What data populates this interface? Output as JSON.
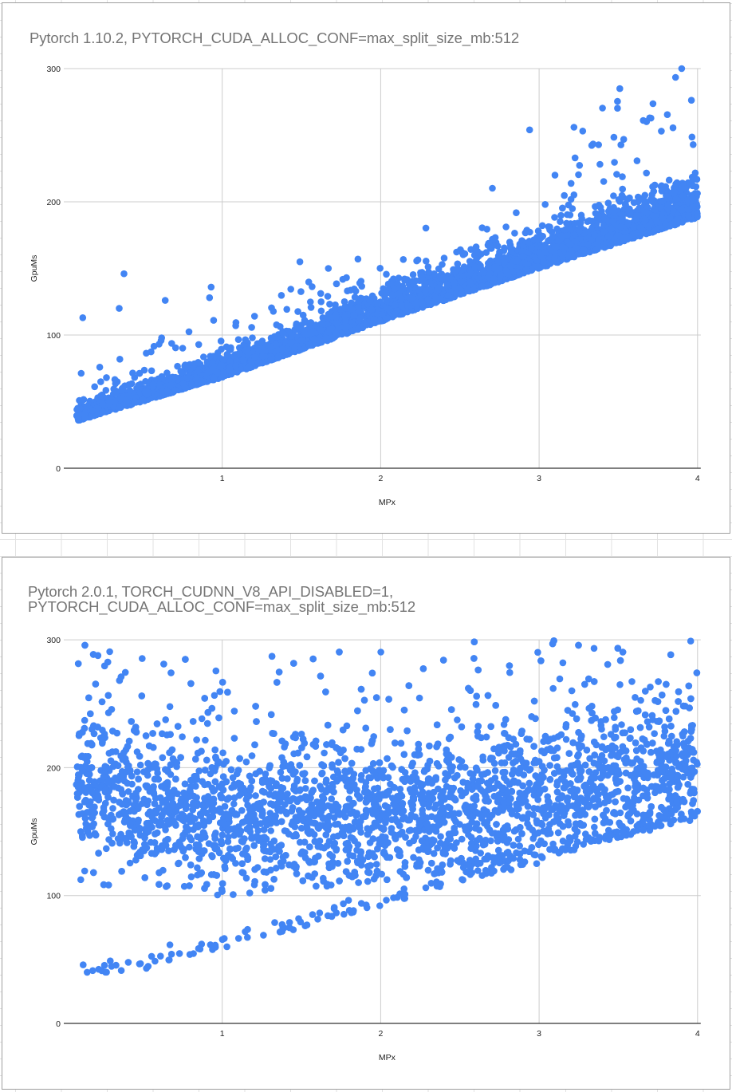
{
  "charts": [
    {
      "title": "Pytorch 1.10.2, PYTORCH_CUDA_ALLOC_CONF=max_split_size_mb:512",
      "xlabel": "MPx",
      "ylabel": "GpuMs",
      "x_ticks": [
        "1",
        "2",
        "3",
        "4"
      ],
      "y_ticks": [
        "0",
        "100",
        "200",
        "300"
      ]
    },
    {
      "title": "Pytorch 2.0.1, TORCH_CUDNN_V8_API_DISABLED=1,\nPYTORCH_CUDA_ALLOC_CONF=max_split_size_mb:512",
      "xlabel": "MPx",
      "ylabel": "GpuMs",
      "x_ticks": [
        "1",
        "2",
        "3",
        "4"
      ],
      "y_ticks": [
        "0",
        "100",
        "200",
        "300"
      ]
    }
  ],
  "colors": {
    "point": "#4285f4",
    "gridline": "#cccccc",
    "axis": "#333333",
    "title": "#757575",
    "frame": "#9e9e9e"
  },
  "chart_data": [
    {
      "type": "scatter",
      "title": "Pytorch 1.10.2, PYTORCH_CUDA_ALLOC_CONF=max_split_size_mb:512",
      "xlabel": "MPx",
      "ylabel": "GpuMs",
      "xlim": [
        0,
        4
      ],
      "ylim": [
        0,
        300
      ],
      "x_ticks": [
        1,
        2,
        3,
        4
      ],
      "y_ticks": [
        0,
        100,
        200,
        300
      ],
      "grid": true,
      "legend": "none",
      "series": [
        {
          "name": "GpuMs",
          "description": "Dense, tight linear band: ~36 GpuMs at 0.1 MPx rising to ~190-200 GpuMs at 4 MPx; sparse upward outliers, wider spread above 3.3 MPx reaching ~300",
          "trend": {
            "intercept": 34,
            "slope": 40
          },
          "lower_edge": [
            [
              0.1,
              36
            ],
            [
              1,
              68
            ],
            [
              2,
              110
            ],
            [
              3,
              150
            ],
            [
              4,
              188
            ]
          ],
          "upper_edge": [
            [
              0.1,
              70
            ],
            [
              1,
              100
            ],
            [
              2,
              140
            ],
            [
              3,
              185
            ],
            [
              4,
              300
            ]
          ],
          "notable_outliers": [
            [
              0.12,
              113
            ],
            [
              0.38,
              146
            ],
            [
              0.35,
              120
            ],
            [
              0.64,
              126
            ],
            [
              0.93,
              136
            ],
            [
              0.92,
              128
            ],
            [
              1.49,
              155
            ],
            [
              1.67,
              150
            ],
            [
              2.94,
              254
            ],
            [
              3.22,
              256
            ],
            [
              3.1,
              220
            ],
            [
              3.9,
              300
            ]
          ],
          "approx_point_count": 5000
        }
      ]
    },
    {
      "type": "scatter",
      "title": "Pytorch 2.0.1, TORCH_CUDNN_V8_API_DISABLED=1, PYTORCH_CUDA_ALLOC_CONF=max_split_size_mb:512",
      "xlabel": "MPx",
      "ylabel": "GpuMs",
      "xlim": [
        0,
        4
      ],
      "ylim": [
        0,
        300
      ],
      "x_ticks": [
        1,
        2,
        3,
        4
      ],
      "y_ticks": [
        0,
        100,
        200,
        300
      ],
      "grid": true,
      "legend": "none",
      "series": [
        {
          "name": "GpuMs",
          "description": "Very wide band centered ~150-170 GpuMs across all MPx, spanning ~105-300; a sparse linear lower branch from ~40 GpuMs at 0.1 MPx to ~160 at 4 MPx",
          "main_band": {
            "center": [
              [
                0.1,
                185
              ],
              [
                1,
                160
              ],
              [
                2,
                160
              ],
              [
                3,
                175
              ],
              [
                4,
                200
              ]
            ],
            "min": [
              [
                0.1,
                105
              ],
              [
                1,
                100
              ],
              [
                2,
                110
              ],
              [
                3,
                130
              ],
              [
                4,
                160
              ]
            ],
            "max": [
              [
                0.1,
                300
              ],
              [
                1,
                300
              ],
              [
                2,
                300
              ],
              [
                3,
                300
              ],
              [
                4,
                300
              ]
            ]
          },
          "lower_branch": [
            [
              0.1,
              38
            ],
            [
              0.5,
              42
            ],
            [
              1,
              58
            ],
            [
              1.5,
              75
            ],
            [
              2,
              92
            ],
            [
              2.5,
              110
            ],
            [
              3,
              125
            ],
            [
              3.5,
              145
            ],
            [
              4,
              160
            ]
          ],
          "approx_point_count": 5000
        }
      ]
    }
  ]
}
